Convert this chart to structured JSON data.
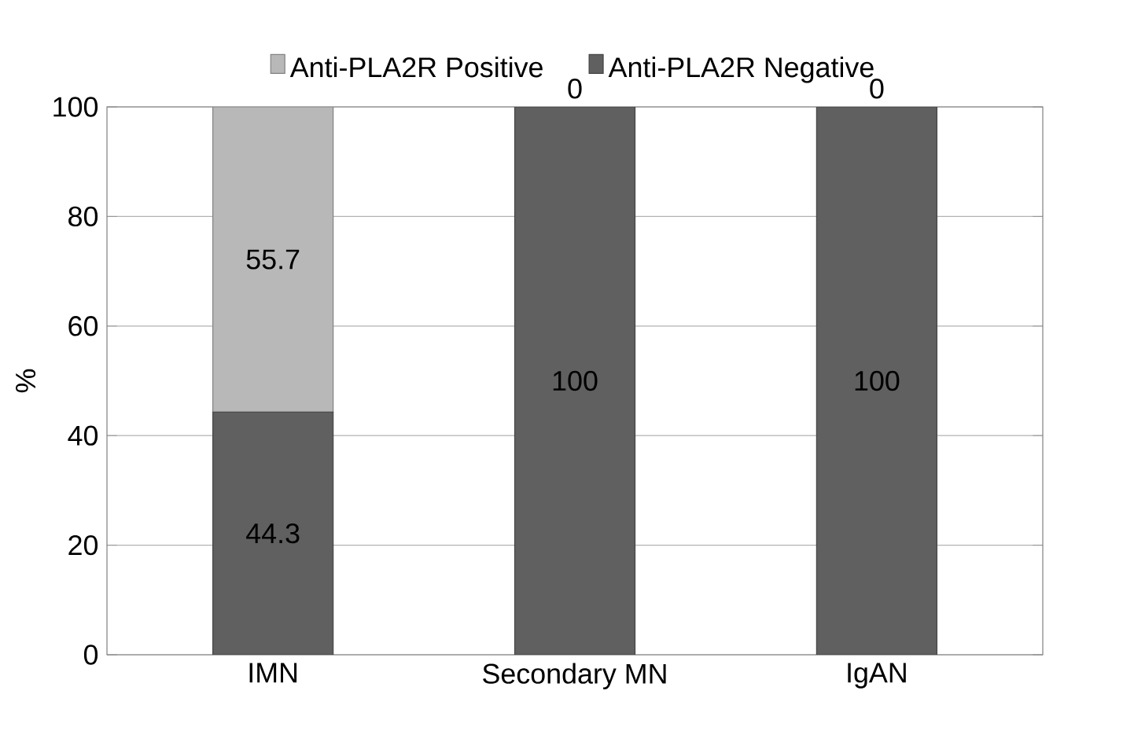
{
  "chart_data": {
    "type": "bar",
    "stacked": true,
    "categories": [
      "IMN",
      "Secondary MN",
      "IgAN"
    ],
    "series": [
      {
        "name": "Anti-PLA2R Negative",
        "color": "#606060",
        "values": [
          44.3,
          100,
          100
        ]
      },
      {
        "name": "Anti-PLA2R Positive",
        "color": "#b8b8b8",
        "values": [
          55.7,
          0,
          0
        ]
      }
    ],
    "ylabel": "%",
    "ylim": [
      0,
      100
    ],
    "yticks": [
      0,
      20,
      40,
      60,
      80,
      100
    ],
    "grid": "y",
    "legend": "top",
    "data_labels": true
  }
}
